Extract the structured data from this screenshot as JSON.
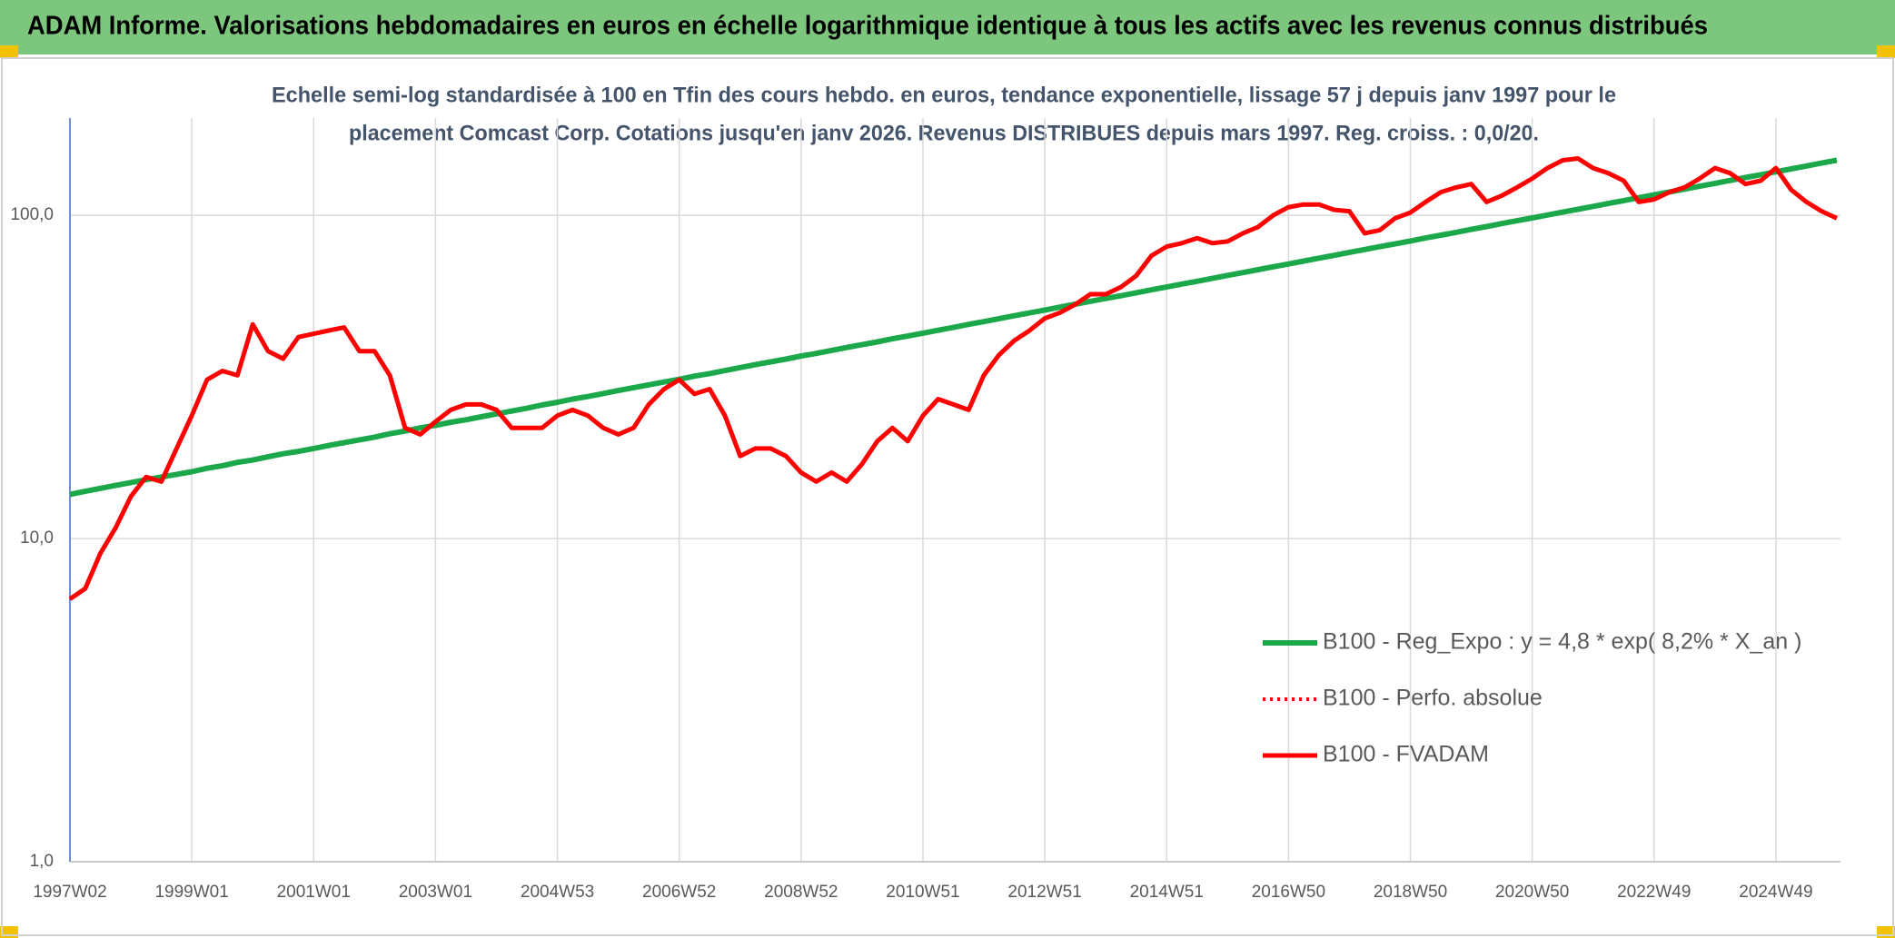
{
  "chart_data": {
    "type": "line",
    "title": "ADAM Informe. Valorisations hebdomadaires en euros en échelle logarithmique identique à tous les actifs avec les revenus connus distribués",
    "subtitle": [
      "Echelle semi-log standardisée à 100 en Tfin des cours hebdo. en euros, tendance exponentielle, lissage 57 j depuis janv 1997 pour le",
      "placement Comcast Corp. Cotations jusqu'en janv 2026. Revenus DISTRIBUES depuis mars 1997. Reg. croiss. : 0,0/20."
    ],
    "log_scale": true,
    "grid": true,
    "legend": "right",
    "ylim": [
      1,
      200
    ],
    "yticks": [
      {
        "value": 1,
        "label": "1,0"
      },
      {
        "value": 10,
        "label": "10,0"
      },
      {
        "value": 100,
        "label": "100,0"
      }
    ],
    "categories": [
      "1997W02",
      null,
      null,
      null,
      null,
      null,
      null,
      null,
      "1999W01",
      null,
      null,
      null,
      null,
      null,
      null,
      null,
      "2001W01",
      null,
      null,
      null,
      null,
      null,
      null,
      null,
      "2003W01",
      null,
      null,
      null,
      null,
      null,
      null,
      null,
      "2004W53",
      null,
      null,
      null,
      null,
      null,
      null,
      null,
      "2006W52",
      null,
      null,
      null,
      null,
      null,
      null,
      null,
      "2008W52",
      null,
      null,
      null,
      null,
      null,
      null,
      null,
      "2010W51",
      null,
      null,
      null,
      null,
      null,
      null,
      null,
      "2012W51",
      null,
      null,
      null,
      null,
      null,
      null,
      null,
      "2014W51",
      null,
      null,
      null,
      null,
      null,
      null,
      null,
      "2016W50",
      null,
      null,
      null,
      null,
      null,
      null,
      null,
      "2018W50",
      null,
      null,
      null,
      null,
      null,
      null,
      null,
      "2020W50",
      null,
      null,
      null,
      null,
      null,
      null,
      null,
      "2022W49",
      null,
      null,
      null,
      null,
      null,
      null,
      null,
      "2024W49",
      null,
      null,
      null,
      null
    ],
    "series": [
      {
        "name": "B100 - Reg_Expo : y = 4,8 * exp( 8,2% *  X_an )",
        "color": "#1aa84a",
        "style": "solid",
        "width": 6,
        "values": [
          13.7,
          14.0,
          14.3,
          14.6,
          14.9,
          15.2,
          15.5,
          15.8,
          16.1,
          16.5,
          16.8,
          17.2,
          17.5,
          17.9,
          18.3,
          18.6,
          19.0,
          19.4,
          19.8,
          20.2,
          20.6,
          21.1,
          21.5,
          22.0,
          22.4,
          22.9,
          23.3,
          23.8,
          24.3,
          24.8,
          25.3,
          25.9,
          26.4,
          27.0,
          27.5,
          28.1,
          28.7,
          29.3,
          29.9,
          30.5,
          31.1,
          31.8,
          32.4,
          33.1,
          33.8,
          34.5,
          35.2,
          35.9,
          36.7,
          37.4,
          38.2,
          39.0,
          39.8,
          40.6,
          41.5,
          42.3,
          43.2,
          44.1,
          45.0,
          46.0,
          46.9,
          47.9,
          48.9,
          49.9,
          50.9,
          52.0,
          53.1,
          54.2,
          55.3,
          56.4,
          57.6,
          58.8,
          60.0,
          61.3,
          62.5,
          63.8,
          65.2,
          66.5,
          67.9,
          69.3,
          70.7,
          72.2,
          73.7,
          75.2,
          76.8,
          78.4,
          80.0,
          81.6,
          83.3,
          85.1,
          86.8,
          88.6,
          90.5,
          92.3,
          94.3,
          96.2,
          98.2,
          100.2,
          102.3,
          104.4,
          106.6,
          108.8,
          111.1,
          113.4,
          115.7,
          118.1,
          120.5,
          123.0,
          125.6,
          128.2,
          130.9,
          133.6,
          136.4,
          139.2,
          142.1,
          145.1,
          148.1
        ]
      },
      {
        "name": "B100 - Perfo. absolue",
        "color": "#ff0000",
        "style": "dotted",
        "width": 4,
        "values": [
          6.5,
          7.0,
          9.0,
          10.8,
          13.5,
          15.5,
          15.0,
          19.0,
          24,
          31,
          33,
          32,
          46,
          38,
          36,
          42,
          43,
          44,
          45,
          38,
          38,
          32,
          22,
          21,
          23,
          25,
          26,
          26,
          25,
          22,
          22,
          22,
          24,
          25,
          24,
          22,
          21,
          22,
          26,
          29,
          31,
          28,
          29,
          24,
          18,
          19,
          19,
          18,
          16,
          15,
          16,
          15,
          17,
          20,
          22,
          20,
          24,
          27,
          26,
          25,
          32,
          37,
          41,
          44,
          48,
          50,
          53,
          57,
          57,
          60,
          65,
          75,
          80,
          82,
          85,
          82,
          83,
          88,
          92,
          100,
          106,
          108,
          108,
          104,
          103,
          88,
          90,
          98,
          102,
          110,
          118,
          122,
          125,
          110,
          115,
          122,
          130,
          140,
          148,
          150,
          140,
          135,
          128,
          110,
          112,
          118,
          122,
          130,
          140,
          135,
          125,
          128,
          140,
          120,
          110,
          103,
          98
        ]
      },
      {
        "name": "B100 - FVADAM",
        "color": "#ff0000",
        "style": "solid",
        "width": 5,
        "values": [
          6.5,
          7.0,
          9.0,
          10.8,
          13.5,
          15.5,
          15.0,
          19.0,
          24,
          31,
          33,
          32,
          46,
          38,
          36,
          42,
          43,
          44,
          45,
          38,
          38,
          32,
          22,
          21,
          23,
          25,
          26,
          26,
          25,
          22,
          22,
          22,
          24,
          25,
          24,
          22,
          21,
          22,
          26,
          29,
          31,
          28,
          29,
          24,
          18,
          19,
          19,
          18,
          16,
          15,
          16,
          15,
          17,
          20,
          22,
          20,
          24,
          27,
          26,
          25,
          32,
          37,
          41,
          44,
          48,
          50,
          53,
          57,
          57,
          60,
          65,
          75,
          80,
          82,
          85,
          82,
          83,
          88,
          92,
          100,
          106,
          108,
          108,
          104,
          103,
          88,
          90,
          98,
          102,
          110,
          118,
          122,
          125,
          110,
          115,
          122,
          130,
          140,
          148,
          150,
          140,
          135,
          128,
          110,
          112,
          118,
          122,
          130,
          140,
          135,
          125,
          128,
          140,
          120,
          110,
          103,
          98
        ]
      }
    ]
  }
}
